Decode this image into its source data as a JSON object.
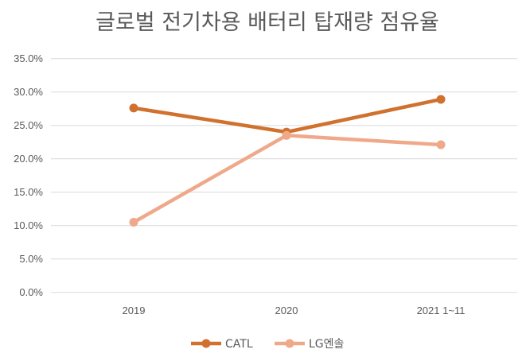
{
  "chart_data": {
    "type": "line",
    "title": "글로벌 전기차용 배터리 탑재량 점유율",
    "xlabel": "",
    "ylabel": "",
    "categories": [
      "2019",
      "2020",
      "2021 1~11"
    ],
    "yticks": [
      "0.0%",
      "5.0%",
      "10.0%",
      "15.0%",
      "20.0%",
      "25.0%",
      "30.0%",
      "35.0%"
    ],
    "ylim": [
      0,
      35
    ],
    "y_unit": "%",
    "grid": true,
    "legend_position": "bottom",
    "series": [
      {
        "name": "CATL",
        "values": [
          27.6,
          24.0,
          28.9
        ],
        "color": "#D0712E"
      },
      {
        "name": "LG엔솔",
        "values": [
          10.5,
          23.5,
          22.1
        ],
        "color": "#EFA98A"
      }
    ]
  }
}
